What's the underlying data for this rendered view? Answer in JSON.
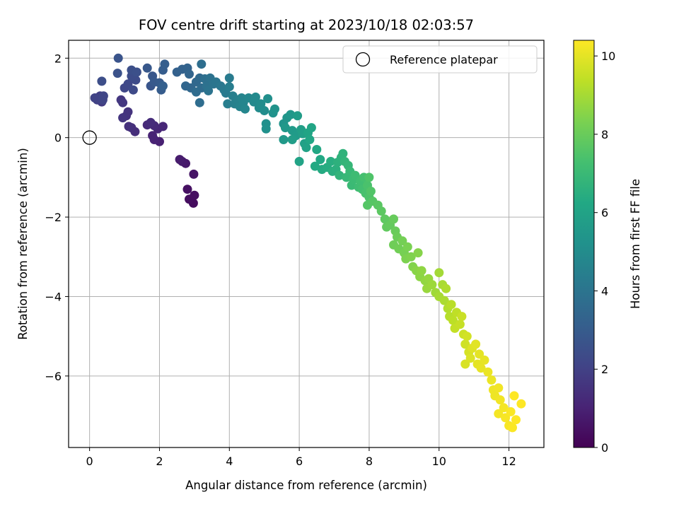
{
  "chart_data": {
    "type": "scatter",
    "title": "FOV centre drift starting at 2023/10/18 02:03:57",
    "xlabel": "Angular distance from reference (arcmin)",
    "ylabel": "Rotation from reference (arcmin)",
    "xlim": [
      -0.6,
      13.0
    ],
    "ylim": [
      -7.8,
      2.45
    ],
    "xticks": [
      0,
      2,
      4,
      6,
      8,
      10,
      12
    ],
    "xtick_labels": [
      "0",
      "2",
      "4",
      "6",
      "8",
      "10",
      "12"
    ],
    "yticks": [
      2,
      0,
      -2,
      -4,
      -6
    ],
    "ytick_labels": [
      "2",
      "0",
      "−2",
      "−4",
      "−6"
    ],
    "grid": true,
    "legend": {
      "position": "top-right",
      "entries": [
        "Reference platepar"
      ]
    },
    "reference_point": {
      "x": 0,
      "y": 0,
      "label": "Reference platepar"
    },
    "colorbar": {
      "label": "Hours from first FF file",
      "range": [
        0,
        10.4
      ],
      "ticks": [
        0,
        2,
        4,
        6,
        8,
        10
      ],
      "tick_labels": [
        "0",
        "2",
        "4",
        "6",
        "8",
        "10"
      ],
      "colormap": "viridis"
    },
    "points": [
      [
        2.97,
        -1.65,
        0.3
      ],
      [
        2.85,
        -1.55,
        0.35
      ],
      [
        3.0,
        -1.45,
        0.4
      ],
      [
        2.8,
        -1.3,
        0.45
      ],
      [
        2.98,
        -0.92,
        0.55
      ],
      [
        2.75,
        -0.65,
        0.7
      ],
      [
        2.65,
        -0.6,
        0.75
      ],
      [
        2.58,
        -0.55,
        0.8
      ],
      [
        2.0,
        -0.1,
        0.95
      ],
      [
        1.85,
        -0.05,
        1.0
      ],
      [
        1.8,
        0.05,
        1.05
      ],
      [
        1.95,
        0.22,
        1.1
      ],
      [
        2.1,
        0.28,
        1.15
      ],
      [
        1.85,
        0.3,
        1.2
      ],
      [
        1.65,
        0.32,
        1.25
      ],
      [
        1.75,
        0.38,
        1.3
      ],
      [
        1.3,
        0.15,
        1.35
      ],
      [
        1.2,
        0.25,
        1.4
      ],
      [
        1.12,
        0.28,
        1.45
      ],
      [
        1.05,
        0.55,
        1.5
      ],
      [
        1.1,
        0.65,
        1.55
      ],
      [
        0.95,
        0.5,
        1.6
      ],
      [
        0.9,
        0.95,
        1.65
      ],
      [
        0.95,
        0.88,
        1.7
      ],
      [
        0.35,
        0.9,
        1.8
      ],
      [
        0.3,
        1.05,
        1.9
      ],
      [
        0.22,
        0.95,
        2.0
      ],
      [
        0.15,
        1.0,
        2.05
      ],
      [
        0.38,
        0.95,
        2.1
      ],
      [
        0.4,
        1.05,
        2.15
      ],
      [
        1.0,
        1.25,
        2.2
      ],
      [
        1.1,
        1.35,
        2.25
      ],
      [
        1.25,
        1.2,
        2.3
      ],
      [
        1.32,
        1.45,
        2.35
      ],
      [
        1.2,
        1.55,
        2.4
      ],
      [
        0.35,
        1.42,
        2.45
      ],
      [
        1.2,
        1.7,
        2.5
      ],
      [
        1.35,
        1.65,
        2.55
      ],
      [
        0.8,
        1.62,
        2.6
      ],
      [
        0.82,
        2.0,
        2.7
      ],
      [
        1.75,
        1.3,
        2.75
      ],
      [
        1.8,
        1.55,
        2.8
      ],
      [
        1.65,
        1.75,
        2.85
      ],
      [
        1.85,
        1.4,
        2.9
      ],
      [
        2.0,
        1.38,
        2.95
      ],
      [
        2.05,
        1.2,
        3.0
      ],
      [
        2.1,
        1.7,
        3.05
      ],
      [
        2.15,
        1.85,
        3.1
      ],
      [
        2.1,
        1.3,
        3.15
      ],
      [
        2.5,
        1.65,
        3.2
      ],
      [
        2.65,
        1.72,
        3.25
      ],
      [
        2.8,
        1.75,
        3.3
      ],
      [
        2.85,
        1.6,
        3.35
      ],
      [
        2.75,
        1.3,
        3.4
      ],
      [
        2.9,
        1.25,
        3.45
      ],
      [
        3.05,
        1.4,
        3.5
      ],
      [
        3.15,
        1.5,
        3.55
      ],
      [
        3.2,
        1.25,
        3.6
      ],
      [
        3.05,
        1.15,
        3.65
      ],
      [
        3.15,
        0.88,
        3.7
      ],
      [
        3.2,
        1.85,
        3.75
      ],
      [
        3.3,
        1.48,
        3.8
      ],
      [
        3.35,
        1.3,
        3.85
      ],
      [
        3.45,
        1.5,
        3.9
      ],
      [
        3.4,
        1.18,
        3.95
      ],
      [
        3.55,
        1.35,
        4.0
      ],
      [
        3.62,
        1.4,
        4.05
      ],
      [
        3.75,
        1.3,
        4.1
      ],
      [
        3.85,
        1.2,
        4.2
      ],
      [
        3.9,
        1.12,
        4.25
      ],
      [
        4.0,
        1.5,
        4.3
      ],
      [
        4.0,
        1.28,
        4.35
      ],
      [
        3.95,
        0.85,
        4.4
      ],
      [
        4.1,
        1.05,
        4.45
      ],
      [
        4.15,
        0.85,
        4.5
      ],
      [
        4.25,
        0.95,
        4.55
      ],
      [
        4.3,
        0.78,
        4.6
      ],
      [
        4.35,
        1.0,
        4.65
      ],
      [
        4.4,
        0.88,
        4.7
      ],
      [
        4.45,
        0.72,
        4.75
      ],
      [
        4.55,
        1.0,
        4.8
      ],
      [
        4.7,
        0.9,
        4.85
      ],
      [
        4.75,
        1.02,
        4.9
      ],
      [
        4.85,
        0.75,
        4.95
      ],
      [
        4.9,
        0.85,
        5.0
      ],
      [
        5.0,
        0.68,
        5.05
      ],
      [
        5.1,
        0.98,
        5.1
      ],
      [
        5.05,
        0.35,
        5.15
      ],
      [
        5.05,
        0.22,
        5.2
      ],
      [
        5.25,
        0.62,
        5.25
      ],
      [
        5.3,
        0.72,
        5.3
      ],
      [
        5.55,
        0.35,
        5.35
      ],
      [
        5.65,
        0.5,
        5.4
      ],
      [
        5.75,
        0.58,
        5.45
      ],
      [
        5.6,
        0.25,
        5.5
      ],
      [
        5.55,
        -0.05,
        5.55
      ],
      [
        5.8,
        0.18,
        5.6
      ],
      [
        5.9,
        0.05,
        5.65
      ],
      [
        5.95,
        0.55,
        5.7
      ],
      [
        5.8,
        -0.05,
        5.75
      ],
      [
        6.05,
        0.2,
        5.8
      ],
      [
        6.1,
        0.1,
        5.85
      ],
      [
        6.15,
        -0.15,
        5.9
      ],
      [
        6.2,
        -0.25,
        5.95
      ],
      [
        6.0,
        -0.6,
        6.0
      ],
      [
        6.25,
        0.12,
        6.05
      ],
      [
        6.35,
        0.25,
        6.1
      ],
      [
        6.3,
        -0.05,
        6.15
      ],
      [
        6.5,
        -0.3,
        6.2
      ],
      [
        6.6,
        -0.55,
        6.25
      ],
      [
        6.45,
        -0.72,
        6.3
      ],
      [
        6.65,
        -0.8,
        6.35
      ],
      [
        6.8,
        -0.75,
        6.4
      ],
      [
        6.9,
        -0.6,
        6.45
      ],
      [
        6.95,
        -0.85,
        6.5
      ],
      [
        7.05,
        -0.8,
        6.55
      ],
      [
        7.1,
        -0.62,
        6.6
      ],
      [
        7.2,
        -0.5,
        6.65
      ],
      [
        7.25,
        -0.4,
        6.7
      ],
      [
        7.15,
        -0.95,
        6.75
      ],
      [
        7.3,
        -0.6,
        6.8
      ],
      [
        7.4,
        -0.7,
        6.85
      ],
      [
        7.35,
        -1.0,
        6.9
      ],
      [
        7.45,
        -0.85,
        6.95
      ],
      [
        7.5,
        -1.2,
        7.0
      ],
      [
        7.55,
        -1.05,
        7.05
      ],
      [
        7.6,
        -0.95,
        7.1
      ],
      [
        7.7,
        -1.25,
        7.15
      ],
      [
        7.75,
        -1.1,
        7.2
      ],
      [
        7.8,
        -1.3,
        7.25
      ],
      [
        7.85,
        -1.0,
        7.3
      ],
      [
        7.9,
        -1.4,
        7.35
      ],
      [
        7.95,
        -1.2,
        7.4
      ],
      [
        8.0,
        -1.5,
        7.45
      ],
      [
        8.0,
        -1.0,
        7.5
      ],
      [
        8.05,
        -1.35,
        7.55
      ],
      [
        7.95,
        -1.7,
        7.6
      ],
      [
        8.1,
        -1.6,
        7.65
      ],
      [
        8.25,
        -1.7,
        7.7
      ],
      [
        8.35,
        -1.85,
        7.75
      ],
      [
        8.45,
        -2.05,
        7.8
      ],
      [
        8.5,
        -2.25,
        7.85
      ],
      [
        8.6,
        -2.2,
        7.9
      ],
      [
        8.7,
        -2.05,
        7.95
      ],
      [
        8.75,
        -2.35,
        8.0
      ],
      [
        8.8,
        -2.5,
        8.05
      ],
      [
        8.7,
        -2.7,
        8.1
      ],
      [
        8.85,
        -2.8,
        8.15
      ],
      [
        8.95,
        -2.6,
        8.2
      ],
      [
        9.0,
        -2.9,
        8.25
      ],
      [
        9.1,
        -2.75,
        8.3
      ],
      [
        9.05,
        -3.05,
        8.35
      ],
      [
        9.2,
        -3.0,
        8.4
      ],
      [
        9.25,
        -3.25,
        8.45
      ],
      [
        9.4,
        -2.9,
        8.5
      ],
      [
        9.35,
        -3.35,
        8.55
      ],
      [
        9.45,
        -3.5,
        8.6
      ],
      [
        9.5,
        -3.35,
        8.65
      ],
      [
        9.6,
        -3.6,
        8.7
      ],
      [
        9.7,
        -3.55,
        8.75
      ],
      [
        9.65,
        -3.8,
        8.8
      ],
      [
        9.8,
        -3.7,
        8.85
      ],
      [
        9.9,
        -3.9,
        8.9
      ],
      [
        10.0,
        -3.4,
        8.95
      ],
      [
        10.0,
        -4.0,
        9.0
      ],
      [
        10.1,
        -3.7,
        9.05
      ],
      [
        10.15,
        -4.1,
        9.1
      ],
      [
        10.2,
        -3.8,
        9.15
      ],
      [
        10.25,
        -4.3,
        9.2
      ],
      [
        10.3,
        -4.5,
        9.25
      ],
      [
        10.35,
        -4.2,
        9.3
      ],
      [
        10.4,
        -4.6,
        9.35
      ],
      [
        10.5,
        -4.4,
        9.4
      ],
      [
        10.45,
        -4.8,
        9.45
      ],
      [
        10.6,
        -4.7,
        9.5
      ],
      [
        10.65,
        -4.5,
        9.55
      ],
      [
        10.7,
        -4.95,
        9.6
      ],
      [
        10.75,
        -5.2,
        9.65
      ],
      [
        10.8,
        -5.0,
        9.7
      ],
      [
        10.85,
        -5.4,
        9.75
      ],
      [
        10.75,
        -5.7,
        9.8
      ],
      [
        10.9,
        -5.55,
        9.85
      ],
      [
        10.95,
        -5.3,
        9.9
      ],
      [
        11.05,
        -5.2,
        9.95
      ],
      [
        11.1,
        -5.7,
        10.0
      ],
      [
        11.15,
        -5.45,
        10.0
      ],
      [
        11.2,
        -5.8,
        10.05
      ],
      [
        11.3,
        -5.6,
        10.05
      ],
      [
        11.4,
        -5.9,
        10.1
      ],
      [
        11.5,
        -6.1,
        10.1
      ],
      [
        11.55,
        -6.35,
        10.15
      ],
      [
        11.6,
        -6.5,
        10.15
      ],
      [
        11.7,
        -6.3,
        10.2
      ],
      [
        11.75,
        -6.6,
        10.2
      ],
      [
        11.85,
        -6.8,
        10.25
      ],
      [
        11.7,
        -6.95,
        10.25
      ],
      [
        11.9,
        -7.05,
        10.3
      ],
      [
        12.0,
        -7.25,
        10.3
      ],
      [
        12.05,
        -6.9,
        10.35
      ],
      [
        12.1,
        -7.3,
        10.35
      ],
      [
        12.2,
        -7.1,
        10.4
      ],
      [
        12.35,
        -6.7,
        10.4
      ],
      [
        12.15,
        -6.5,
        10.4
      ]
    ]
  }
}
